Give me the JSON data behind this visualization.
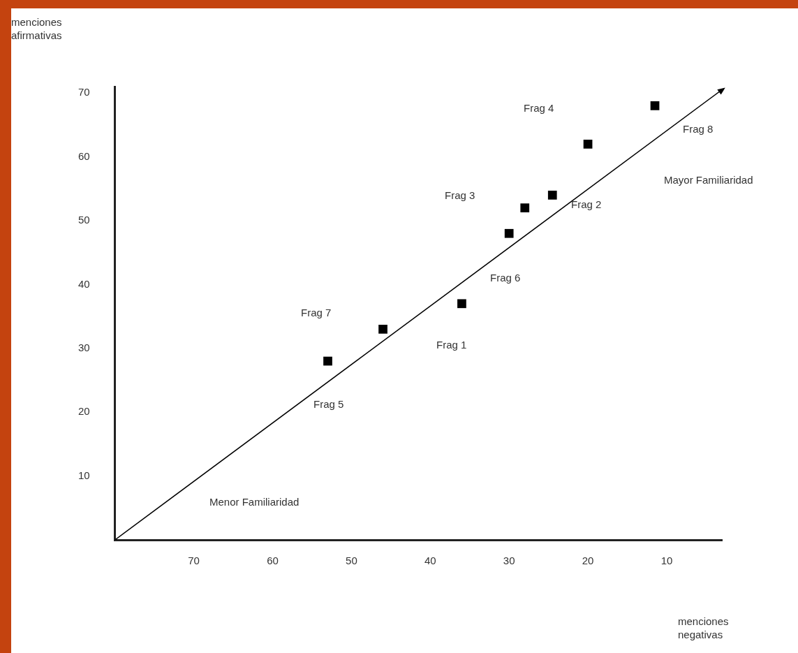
{
  "chart_data": {
    "type": "scatter",
    "xlabel": "menciones negativas",
    "ylabel": "menciones afirmativas",
    "xlim": [
      80,
      3
    ],
    "xticks": [
      70,
      60,
      50,
      40,
      30,
      20,
      10
    ],
    "ylim": [
      0,
      71
    ],
    "yticks": [
      10,
      20,
      30,
      40,
      50,
      60,
      70
    ],
    "grid": false,
    "legend": false,
    "series": [
      {
        "color": "#000000",
        "marker": "square",
        "x": [
          36,
          24.5,
          28,
          20,
          53,
          30,
          46,
          11.5
        ],
        "values": [
          37,
          54,
          52,
          62,
          28,
          48,
          33,
          68
        ]
      },
      {
        "type": "line",
        "color": "#000000",
        "x": [
          80,
          3
        ],
        "values": [
          0,
          70.5
        ]
      }
    ],
    "annotations": [
      "Frag 1",
      "Frag 2",
      "Frag 3",
      "Frag 4",
      "Frag 5",
      "Frag 6",
      "Frag 7",
      "Frag 8",
      "Menor Familiaridad",
      "Mayor Familiaridad"
    ]
  }
}
